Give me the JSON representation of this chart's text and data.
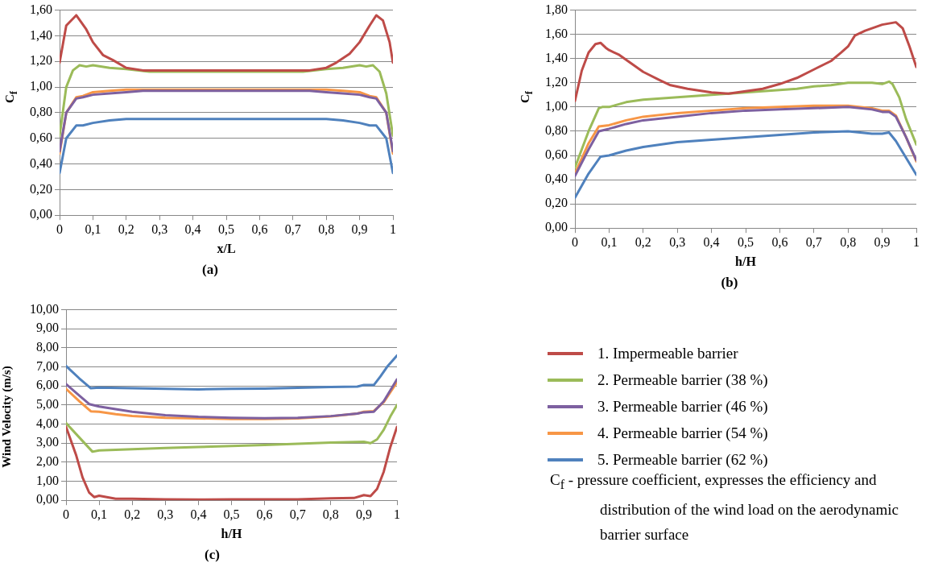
{
  "chart_data": [
    {
      "type": "line",
      "title": "(a)",
      "xlabel": "x/L",
      "ylabel": "C$_{f}$",
      "xlim": [
        0,
        1
      ],
      "ylim": [
        0,
        1.6
      ],
      "xticks": [
        {
          "value": 0,
          "label": "0"
        },
        {
          "value": 0.1,
          "label": "0,1"
        },
        {
          "value": 0.2,
          "label": "0,2"
        },
        {
          "value": 0.3,
          "label": "0,3"
        },
        {
          "value": 0.4,
          "label": "0,4"
        },
        {
          "value": 0.5,
          "label": "0,5"
        },
        {
          "value": 0.6,
          "label": "0,6"
        },
        {
          "value": 0.7,
          "label": "0,7"
        },
        {
          "value": 0.8,
          "label": "0,8"
        },
        {
          "value": 0.9,
          "label": "0,9"
        },
        {
          "value": 1,
          "label": "1"
        }
      ],
      "yticks": [
        {
          "value": 0,
          "label": "0,00"
        },
        {
          "value": 0.2,
          "label": "0,20"
        },
        {
          "value": 0.4,
          "label": "0,40"
        },
        {
          "value": 0.6,
          "label": "0,60"
        },
        {
          "value": 0.8,
          "label": "0,80"
        },
        {
          "value": 1,
          "label": "1,00"
        },
        {
          "value": 1.2,
          "label": "1,20"
        },
        {
          "value": 1.4,
          "label": "1,40"
        },
        {
          "value": 1.6,
          "label": "1,60"
        }
      ],
      "grid": "y",
      "legend": false,
      "marker": "none",
      "line_style": "solid",
      "series": [
        {
          "color": "#be4b48",
          "x": [
            0,
            0.02,
            0.05,
            0.08,
            0.1,
            0.13,
            0.16,
            0.2,
            0.25,
            0.3,
            0.4,
            0.5,
            0.6,
            0.7,
            0.75,
            0.8,
            0.83,
            0.87,
            0.9,
            0.93,
            0.95,
            0.97,
            0.99,
            1
          ],
          "values": [
            1.19,
            1.48,
            1.56,
            1.45,
            1.35,
            1.25,
            1.21,
            1.15,
            1.13,
            1.13,
            1.13,
            1.13,
            1.13,
            1.13,
            1.13,
            1.15,
            1.19,
            1.26,
            1.35,
            1.48,
            1.56,
            1.52,
            1.35,
            1.19
          ]
        },
        {
          "color": "#9bbb59",
          "x": [
            0,
            0.02,
            0.04,
            0.06,
            0.08,
            0.1,
            0.15,
            0.2,
            0.27,
            0.4,
            0.6,
            0.73,
            0.8,
            0.85,
            0.9,
            0.92,
            0.94,
            0.96,
            0.98,
            1
          ],
          "values": [
            0.62,
            1.0,
            1.13,
            1.17,
            1.16,
            1.17,
            1.15,
            1.14,
            1.12,
            1.12,
            1.12,
            1.12,
            1.14,
            1.15,
            1.17,
            1.16,
            1.17,
            1.12,
            0.95,
            0.62
          ]
        },
        {
          "color": "#7d60a0",
          "x": [
            0,
            0.02,
            0.05,
            0.07,
            0.1,
            0.15,
            0.2,
            0.25,
            0.5,
            0.75,
            0.8,
            0.85,
            0.9,
            0.93,
            0.95,
            0.98,
            1
          ],
          "values": [
            0.5,
            0.8,
            0.91,
            0.92,
            0.94,
            0.95,
            0.96,
            0.97,
            0.97,
            0.97,
            0.96,
            0.95,
            0.94,
            0.92,
            0.91,
            0.8,
            0.5
          ]
        },
        {
          "color": "#f79646",
          "x": [
            0,
            0.02,
            0.05,
            0.07,
            0.1,
            0.15,
            0.2,
            0.3,
            0.5,
            0.7,
            0.8,
            0.85,
            0.9,
            0.93,
            0.95,
            0.98,
            1
          ],
          "values": [
            0.48,
            0.8,
            0.92,
            0.93,
            0.96,
            0.97,
            0.98,
            0.98,
            0.98,
            0.98,
            0.98,
            0.97,
            0.96,
            0.93,
            0.92,
            0.8,
            0.48
          ]
        },
        {
          "color": "#4f81bd",
          "x": [
            0,
            0.02,
            0.05,
            0.07,
            0.1,
            0.15,
            0.2,
            0.25,
            0.5,
            0.75,
            0.8,
            0.85,
            0.9,
            0.93,
            0.95,
            0.98,
            1
          ],
          "values": [
            0.33,
            0.6,
            0.7,
            0.7,
            0.72,
            0.74,
            0.75,
            0.75,
            0.75,
            0.75,
            0.75,
            0.74,
            0.72,
            0.7,
            0.7,
            0.6,
            0.33
          ]
        }
      ]
    },
    {
      "type": "line",
      "title": "(b)",
      "xlabel": "h/H",
      "ylabel": "C$_{f}$",
      "xlim": [
        0,
        1
      ],
      "ylim": [
        0,
        1.8
      ],
      "xticks": [
        {
          "value": 0,
          "label": "0"
        },
        {
          "value": 0.1,
          "label": "0,1"
        },
        {
          "value": 0.2,
          "label": "0,2"
        },
        {
          "value": 0.3,
          "label": "0,3"
        },
        {
          "value": 0.4,
          "label": "0,4"
        },
        {
          "value": 0.5,
          "label": "0,5"
        },
        {
          "value": 0.6,
          "label": "0,6"
        },
        {
          "value": 0.7,
          "label": "0,7"
        },
        {
          "value": 0.8,
          "label": "0,8"
        },
        {
          "value": 0.9,
          "label": "0,9"
        },
        {
          "value": 1,
          "label": "1"
        }
      ],
      "yticks": [
        {
          "value": 0,
          "label": "0,00"
        },
        {
          "value": 0.2,
          "label": "0,20"
        },
        {
          "value": 0.4,
          "label": "0,40"
        },
        {
          "value": 0.6,
          "label": "0,60"
        },
        {
          "value": 0.8,
          "label": "0,80"
        },
        {
          "value": 1,
          "label": "1,00"
        },
        {
          "value": 1.2,
          "label": "1,20"
        },
        {
          "value": 1.4,
          "label": "1,40"
        },
        {
          "value": 1.6,
          "label": "1,60"
        },
        {
          "value": 1.8,
          "label": "1,80"
        }
      ],
      "grid": "y",
      "legend": false,
      "marker": "none",
      "line_style": "solid",
      "series": [
        {
          "color": "#be4b48",
          "x": [
            0,
            0.02,
            0.04,
            0.06,
            0.075,
            0.09,
            0.1,
            0.13,
            0.16,
            0.2,
            0.25,
            0.28,
            0.33,
            0.4,
            0.45,
            0.5,
            0.55,
            0.6,
            0.65,
            0.7,
            0.75,
            0.78,
            0.8,
            0.82,
            0.85,
            0.9,
            0.94,
            0.96,
            0.98,
            1
          ],
          "values": [
            1.05,
            1.3,
            1.45,
            1.52,
            1.53,
            1.49,
            1.47,
            1.43,
            1.37,
            1.29,
            1.22,
            1.18,
            1.15,
            1.12,
            1.11,
            1.13,
            1.15,
            1.19,
            1.24,
            1.31,
            1.38,
            1.45,
            1.5,
            1.59,
            1.63,
            1.68,
            1.7,
            1.65,
            1.5,
            1.33
          ]
        },
        {
          "color": "#9bbb59",
          "x": [
            0,
            0.04,
            0.07,
            0.08,
            0.1,
            0.15,
            0.2,
            0.25,
            0.3,
            0.4,
            0.5,
            0.6,
            0.65,
            0.7,
            0.75,
            0.8,
            0.87,
            0.9,
            0.92,
            0.93,
            0.95,
            0.97,
            1
          ],
          "values": [
            0.5,
            0.8,
            0.99,
            1.0,
            1.0,
            1.04,
            1.06,
            1.07,
            1.08,
            1.1,
            1.12,
            1.14,
            1.15,
            1.17,
            1.18,
            1.2,
            1.2,
            1.19,
            1.21,
            1.19,
            1.08,
            0.9,
            0.69
          ]
        },
        {
          "color": "#7d60a0",
          "x": [
            0,
            0.04,
            0.07,
            0.1,
            0.15,
            0.2,
            0.3,
            0.4,
            0.5,
            0.6,
            0.7,
            0.8,
            0.87,
            0.9,
            0.92,
            0.94,
            0.97,
            1
          ],
          "values": [
            0.43,
            0.65,
            0.8,
            0.82,
            0.86,
            0.89,
            0.92,
            0.95,
            0.97,
            0.98,
            0.99,
            1.0,
            0.98,
            0.96,
            0.96,
            0.92,
            0.75,
            0.56
          ]
        },
        {
          "color": "#f79646",
          "x": [
            0,
            0.04,
            0.07,
            0.1,
            0.15,
            0.2,
            0.3,
            0.4,
            0.5,
            0.6,
            0.7,
            0.8,
            0.87,
            0.9,
            0.92,
            0.94,
            0.97,
            1
          ],
          "values": [
            0.45,
            0.7,
            0.84,
            0.85,
            0.89,
            0.92,
            0.95,
            0.97,
            0.99,
            1.0,
            1.01,
            1.01,
            0.99,
            0.97,
            0.97,
            0.93,
            0.75,
            0.55
          ]
        },
        {
          "color": "#4f81bd",
          "x": [
            0,
            0.04,
            0.075,
            0.1,
            0.15,
            0.2,
            0.25,
            0.3,
            0.4,
            0.5,
            0.6,
            0.7,
            0.8,
            0.87,
            0.9,
            0.92,
            0.94,
            0.97,
            1
          ],
          "values": [
            0.25,
            0.45,
            0.59,
            0.6,
            0.64,
            0.67,
            0.69,
            0.71,
            0.73,
            0.75,
            0.77,
            0.79,
            0.8,
            0.78,
            0.78,
            0.79,
            0.72,
            0.58,
            0.44
          ]
        }
      ]
    },
    {
      "type": "line",
      "title": "(c)",
      "xlabel": "h/H",
      "ylabel": "Wind Velocity (m/s)",
      "xlim": [
        0,
        1
      ],
      "ylim": [
        0,
        10
      ],
      "xticks": [
        {
          "value": 0,
          "label": "0"
        },
        {
          "value": 0.1,
          "label": "0,1"
        },
        {
          "value": 0.2,
          "label": "0,2"
        },
        {
          "value": 0.3,
          "label": "0,3"
        },
        {
          "value": 0.4,
          "label": "0,4"
        },
        {
          "value": 0.5,
          "label": "0,5"
        },
        {
          "value": 0.6,
          "label": "0,6"
        },
        {
          "value": 0.7,
          "label": "0,7"
        },
        {
          "value": 0.8,
          "label": "0,8"
        },
        {
          "value": 0.9,
          "label": "0,9"
        },
        {
          "value": 1,
          "label": "1"
        }
      ],
      "yticks": [
        {
          "value": 0,
          "label": "0,00"
        },
        {
          "value": 1,
          "label": "1,00"
        },
        {
          "value": 2,
          "label": "2,00"
        },
        {
          "value": 3,
          "label": "3,00"
        },
        {
          "value": 4,
          "label": "4,00"
        },
        {
          "value": 5,
          "label": "5,00"
        },
        {
          "value": 6,
          "label": "6,00"
        },
        {
          "value": 7,
          "label": "7,00"
        },
        {
          "value": 8,
          "label": "8,00"
        },
        {
          "value": 9,
          "label": "9,00"
        },
        {
          "value": 10,
          "label": "10,00"
        }
      ],
      "grid": "y",
      "legend": "right",
      "marker": "none",
      "line_style": "solid",
      "annotations": [
        "C$_{f}$ - pressure coefficient, expresses the efficiency and distribution of the wind load on the aerodynamic barrier surface"
      ],
      "series": [
        {
          "name": "1. Impermeable barrier",
          "color": "#be4b48",
          "x": [
            0,
            0.03,
            0.05,
            0.07,
            0.085,
            0.1,
            0.15,
            0.2,
            0.3,
            0.4,
            0.5,
            0.6,
            0.7,
            0.8,
            0.87,
            0.9,
            0.92,
            0.94,
            0.96,
            0.98,
            1
          ],
          "values": [
            3.85,
            2.4,
            1.2,
            0.4,
            0.17,
            0.24,
            0.08,
            0.08,
            0.05,
            0.04,
            0.05,
            0.05,
            0.05,
            0.1,
            0.12,
            0.27,
            0.22,
            0.6,
            1.5,
            2.8,
            3.85
          ]
        },
        {
          "name": "2. Permeable barrier (38 %)",
          "color": "#9bbb59",
          "x": [
            0,
            0.04,
            0.08,
            0.1,
            0.2,
            0.3,
            0.4,
            0.5,
            0.6,
            0.7,
            0.8,
            0.9,
            0.92,
            0.94,
            0.96,
            0.98,
            1
          ],
          "values": [
            4.05,
            3.3,
            2.55,
            2.62,
            2.68,
            2.75,
            2.8,
            2.85,
            2.9,
            2.97,
            3.03,
            3.07,
            3.0,
            3.2,
            3.7,
            4.4,
            5.0
          ]
        },
        {
          "name": "3. Permeable barrier (46 %)",
          "color": "#7d60a0",
          "x": [
            0,
            0.04,
            0.07,
            0.1,
            0.15,
            0.2,
            0.3,
            0.4,
            0.5,
            0.6,
            0.7,
            0.8,
            0.88,
            0.9,
            0.93,
            0.96,
            1
          ],
          "values": [
            6.1,
            5.5,
            5.05,
            4.92,
            4.78,
            4.65,
            4.47,
            4.38,
            4.33,
            4.31,
            4.33,
            4.42,
            4.55,
            4.62,
            4.65,
            5.2,
            6.35
          ]
        },
        {
          "name": "4. Permeable barrier (54 %)",
          "color": "#f79646",
          "x": [
            0,
            0.04,
            0.075,
            0.1,
            0.15,
            0.2,
            0.3,
            0.4,
            0.5,
            0.6,
            0.7,
            0.8,
            0.88,
            0.9,
            0.93,
            0.96,
            1
          ],
          "values": [
            5.85,
            5.2,
            4.67,
            4.65,
            4.52,
            4.43,
            4.33,
            4.3,
            4.27,
            4.27,
            4.3,
            4.4,
            4.55,
            4.65,
            4.68,
            5.15,
            6.2
          ]
        },
        {
          "name": "5. Permeable barrier (62 %)",
          "color": "#4f81bd",
          "x": [
            0,
            0.04,
            0.075,
            0.1,
            0.2,
            0.3,
            0.4,
            0.5,
            0.6,
            0.7,
            0.8,
            0.88,
            0.9,
            0.93,
            0.95,
            0.97,
            1
          ],
          "values": [
            7.05,
            6.4,
            5.88,
            5.92,
            5.88,
            5.85,
            5.82,
            5.85,
            5.86,
            5.9,
            5.95,
            5.97,
            6.05,
            6.05,
            6.5,
            7.0,
            7.6
          ]
        }
      ]
    }
  ]
}
